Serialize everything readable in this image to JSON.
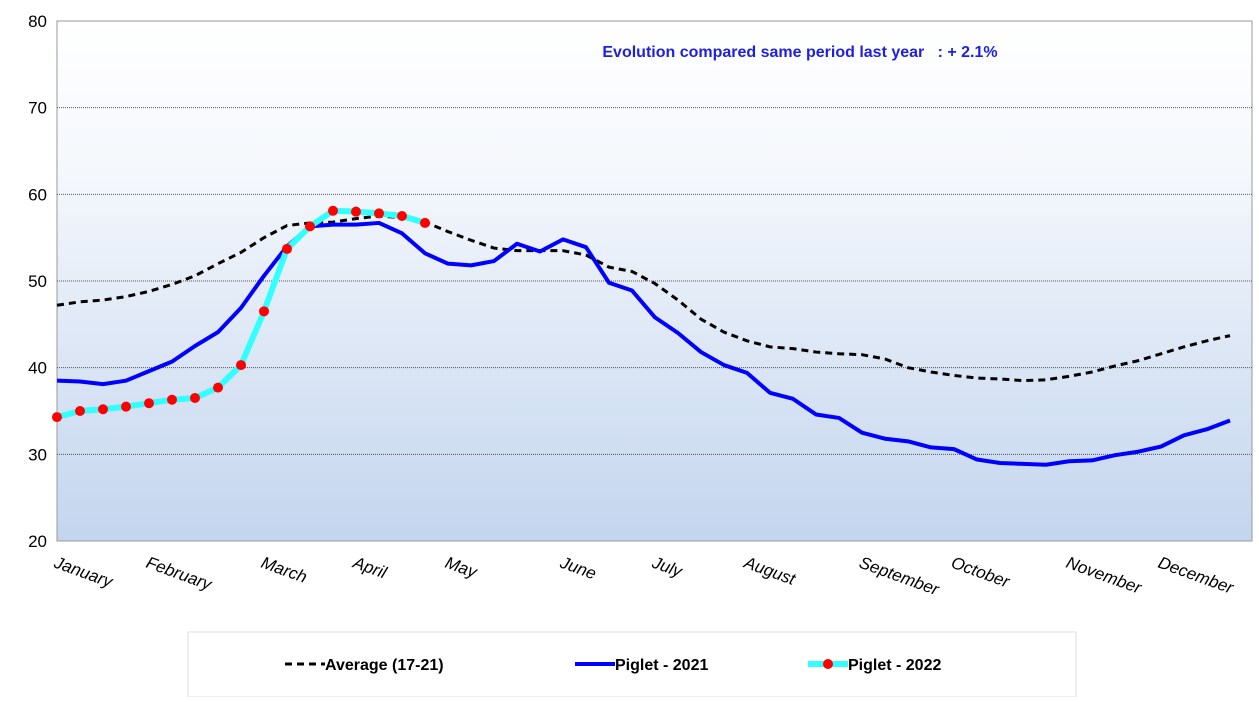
{
  "chart_data": {
    "type": "line",
    "annotation": "Evolution compared same period last year   : + 2.1%",
    "categories": [
      "January",
      null,
      null,
      null,
      "February",
      null,
      null,
      null,
      null,
      "March",
      null,
      null,
      null,
      "April",
      null,
      null,
      null,
      "May",
      null,
      null,
      null,
      null,
      "June",
      null,
      null,
      null,
      "July",
      null,
      null,
      null,
      "August",
      null,
      null,
      null,
      null,
      "September",
      null,
      null,
      null,
      "October",
      null,
      null,
      null,
      null,
      "November",
      null,
      null,
      null,
      "December",
      null,
      null,
      null
    ],
    "series": [
      {
        "name": "Average (17-21)",
        "color": "#000000",
        "dash": true,
        "values": [
          47.2,
          47.6,
          47.8,
          48.2,
          48.8,
          49.6,
          50.6,
          52,
          53.3,
          55,
          56.4,
          56.7,
          56.8,
          57.2,
          57.5,
          57.3,
          56.8,
          55.7,
          54.7,
          53.8,
          53.5,
          53.5,
          53.5,
          53,
          51.6,
          51.1,
          49.7,
          47.8,
          45.6,
          44.1,
          43.1,
          42.4,
          42.2,
          41.8,
          41.6,
          41.5,
          41,
          40,
          39.5,
          39.1,
          38.8,
          38.7,
          38.5,
          38.6,
          39,
          39.5,
          40.2,
          40.8,
          41.6,
          42.4,
          43.1,
          43.7
        ]
      },
      {
        "name": "Piglet - 2021",
        "color": "#0000ff",
        "values": [
          38.5,
          38.4,
          38.1,
          38.5,
          39.6,
          40.7,
          42.5,
          44.1,
          46.9,
          50.6,
          54,
          56.3,
          56.5,
          56.5,
          56.7,
          55.5,
          53.2,
          52,
          51.8,
          52.3,
          54.3,
          53.4,
          54.8,
          53.9,
          49.8,
          48.9,
          45.8,
          44,
          41.8,
          40.3,
          39.4,
          37.1,
          36.4,
          34.6,
          34.2,
          32.5,
          31.8,
          31.5,
          30.8,
          30.6,
          29.4,
          29,
          28.9,
          28.8,
          29.2,
          29.3,
          29.9,
          30.3,
          30.9,
          32.2,
          32.9,
          33.9
        ]
      },
      {
        "name": "Piglet - 2022",
        "color": "#33ffff",
        "marker_color": "#ff0000",
        "values": [
          34.3,
          35,
          35.2,
          35.5,
          35.9,
          36.3,
          36.5,
          37.7,
          40.3,
          46.5,
          53.7,
          56.3,
          58.1,
          58,
          57.8,
          57.5,
          56.7,
          null,
          null,
          null,
          null,
          null,
          null,
          null,
          null,
          null,
          null,
          null,
          null,
          null,
          null,
          null,
          null,
          null,
          null,
          null,
          null,
          null,
          null,
          null,
          null,
          null,
          null,
          null,
          null,
          null,
          null,
          null,
          null,
          null,
          null,
          null
        ]
      }
    ],
    "ylim": [
      20,
      80
    ],
    "yticks": [
      20,
      30,
      40,
      50,
      60,
      70,
      80
    ],
    "grid": true
  }
}
